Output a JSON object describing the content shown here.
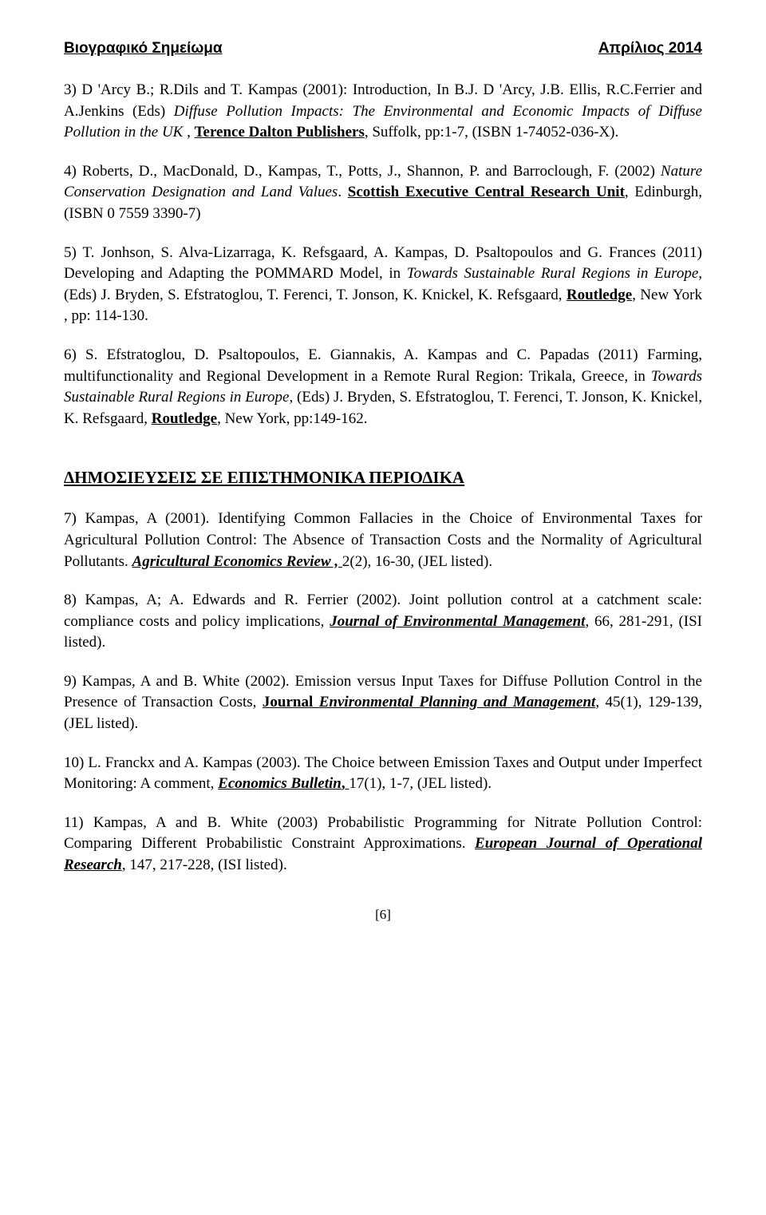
{
  "header": {
    "left": "Βιογραφικό Σημείωμα",
    "right": "Απρίλιος 2014"
  },
  "entries": {
    "e3": {
      "lead": "3) D 'Arcy B.; R.Dils and T. Kampas (2001): Introduction,  In B.J. D 'Arcy, J.B. Ellis, R.C.Ferrier and A.Jenkins (Eds) ",
      "ital": "Diffuse Pollution Impacts: The Environmental and Economic Impacts of Diffuse Pollution in the UK ",
      "mid": ", ",
      "pub": "Terence Dalton Publishers",
      "tail": ", Suffolk, pp:1-7, (ISBN 1-74052-036-X)."
    },
    "e4": {
      "lead": "4) Roberts, D., MacDonald, D., Kampas, T., Potts, J., Shannon, P. and Barroclough, F. (2002) ",
      "ital": "Nature Conservation Designation and Land Values",
      "mid": ". ",
      "pub": "Scottish Executive Central Research Unit",
      "tail": ", Edinburgh, (ISBN 0 7559 3390-7)"
    },
    "e5": {
      "lead": "5) T. Jonhson, S. Alva-Lizarraga, K. Refsgaard, A. Kampas, D. Psaltopoulos and G. Frances (2011) Developing and Adapting the POMMARD Model, in ",
      "ital": "Towards Sustainable Rural Regions in Europe",
      "mid": ", (Eds) J. Bryden, S. Efstratoglou, T. Ferenci, T. Jonson, K. Knickel, K. Refsgaard,  ",
      "pub": "Routledge",
      "tail": ", New York ,  pp: 114-130."
    },
    "e6": {
      "lead": "6) S. Efstratoglou,  D. Psaltopoulos, E. Giannakis, A. Kampas  and C. Papadas (2011)  Farming, multifunctionality and Regional Development in a Remote Rural Region: Trikala, Greece, in ",
      "ital": "Towards Sustainable Rural Regions in Europe",
      "mid": ", (Eds) J. Bryden, S. Efstratoglou, T. Ferenci, T. Jonson, K. Knickel, K. Refsgaard,  ",
      "pub": "Routledge",
      "tail": ", New York, pp:149-162."
    },
    "section": "ΔΗΜΟΣΙΕΥΣΕΙΣ ΣΕ ΕΠΙΣΤΗΜΟΝΙΚΑ ΠΕΡΙΟΔΙΚΑ",
    "e7": {
      "lead": "7) Kampas, A (2001). Identifying Common Fallacies in the Choice of Environmental Taxes for Agricultural Pollution Control: The Absence of Transaction Costs and the Normality of Agricultural Pollutants. ",
      "pub": "Agricultural Economics Review , ",
      "tail": "2(2), 16-30, (JEL listed)."
    },
    "e8": {
      "lead": "8) Kampas, A; A. Edwards and R. Ferrier (2002). Joint pollution control at a catchment scale: compliance costs and policy implications, ",
      "pub": "Journal of Environmental Management",
      "tail": ", 66, 281-291, (ISI listed)."
    },
    "e9": {
      "lead": "9) Kampas, A and B. White (2002). Emission versus Input Taxes for Diffuse Pollution Control in the Presence of Transaction Costs, ",
      "pub_plain": "Journal ",
      "pub_ital": "Environmental Planning and Management",
      "tail": ", 45(1), 129-139, (JEL listed)."
    },
    "e10": {
      "lead": "10) L. Franckx and A. Kampas (2003). The Choice between Emission Taxes and Output under Imperfect Monitoring: A comment, ",
      "pub": "Economics Bulletin",
      "tail_u": ", ",
      "tail": "17(1), 1-7, (JEL listed)."
    },
    "e11": {
      "lead": "11) Kampas, A and B. White (2003) Probabilistic Programming for Nitrate Pollution Control: Comparing Different Probabilistic Constraint Approximations. ",
      "pub": "European Journal of Operational Research",
      "tail": ", 147, 217-228, (ISI listed)."
    }
  },
  "pagenum": "[6]"
}
